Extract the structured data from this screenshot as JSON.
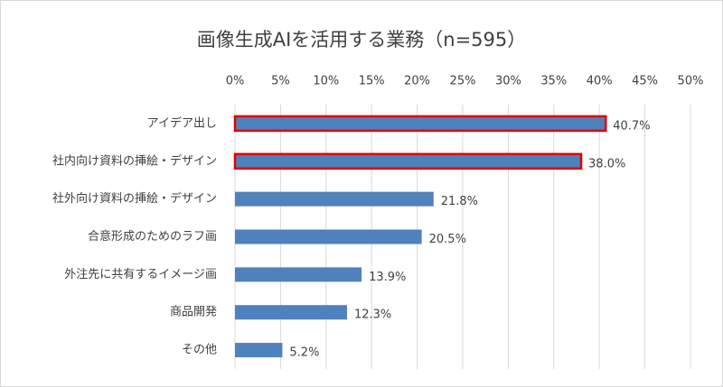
{
  "chart_data": {
    "type": "barh",
    "title": "画像生成AIを活用する業務（n=595）",
    "categories": [
      "アイデア出し",
      "社内向け資料の挿絵・デザイン",
      "社外向け資料の挿絵・デザイン",
      "合意形成のためのラフ画",
      "外注先に共有するイメージ画",
      "商品開発",
      "その他"
    ],
    "values": [
      40.7,
      38.0,
      21.8,
      20.5,
      13.9,
      12.3,
      5.2
    ],
    "value_labels": [
      "40.7%",
      "38.0%",
      "21.8%",
      "20.5%",
      "13.9%",
      "12.3%",
      "5.2%"
    ],
    "color": "#4f81bd",
    "edge_colors": [
      "#e00000",
      "#e00000",
      null,
      null,
      null,
      null,
      null
    ],
    "xlim": [
      0,
      50
    ],
    "xticks": [
      {
        "value": 0,
        "label": "0%"
      },
      {
        "value": 5,
        "label": "5%"
      },
      {
        "value": 10,
        "label": "10%"
      },
      {
        "value": 15,
        "label": "15%"
      },
      {
        "value": 20,
        "label": "20%"
      },
      {
        "value": 25,
        "label": "25%"
      },
      {
        "value": 30,
        "label": "30%"
      },
      {
        "value": 35,
        "label": "35%"
      },
      {
        "value": 40,
        "label": "40%"
      },
      {
        "value": 45,
        "label": "45%"
      },
      {
        "value": 50,
        "label": "50%"
      }
    ],
    "grid": true
  }
}
